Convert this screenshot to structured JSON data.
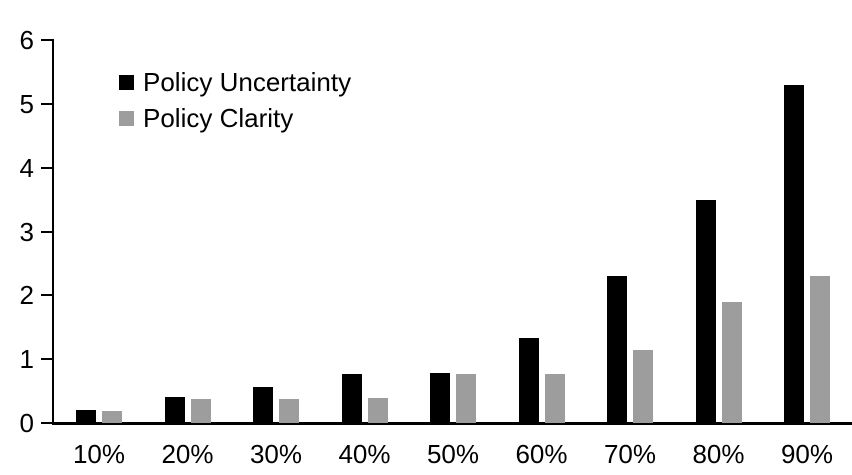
{
  "chart_data": {
    "type": "bar",
    "title": "",
    "xlabel": "",
    "ylabel": "",
    "categories": [
      "10%",
      "20%",
      "30%",
      "40%",
      "50%",
      "60%",
      "70%",
      "80%",
      "90%"
    ],
    "series": [
      {
        "name": "Policy Uncertainty",
        "color": "#000000",
        "values": [
          0.2,
          0.4,
          0.57,
          0.77,
          0.78,
          1.33,
          2.3,
          3.5,
          5.3
        ]
      },
      {
        "name": "Policy Clarity",
        "color": "#9d9d9d",
        "values": [
          0.19,
          0.38,
          0.38,
          0.39,
          0.77,
          0.77,
          1.15,
          1.9,
          2.3
        ]
      }
    ],
    "ylim": [
      0,
      6
    ],
    "yticks": [
      0,
      1,
      2,
      3,
      4,
      5,
      6
    ],
    "grid": false,
    "legend_position": "upper-left-inside",
    "axis_color": "#000000",
    "background_color": "#ffffff"
  }
}
